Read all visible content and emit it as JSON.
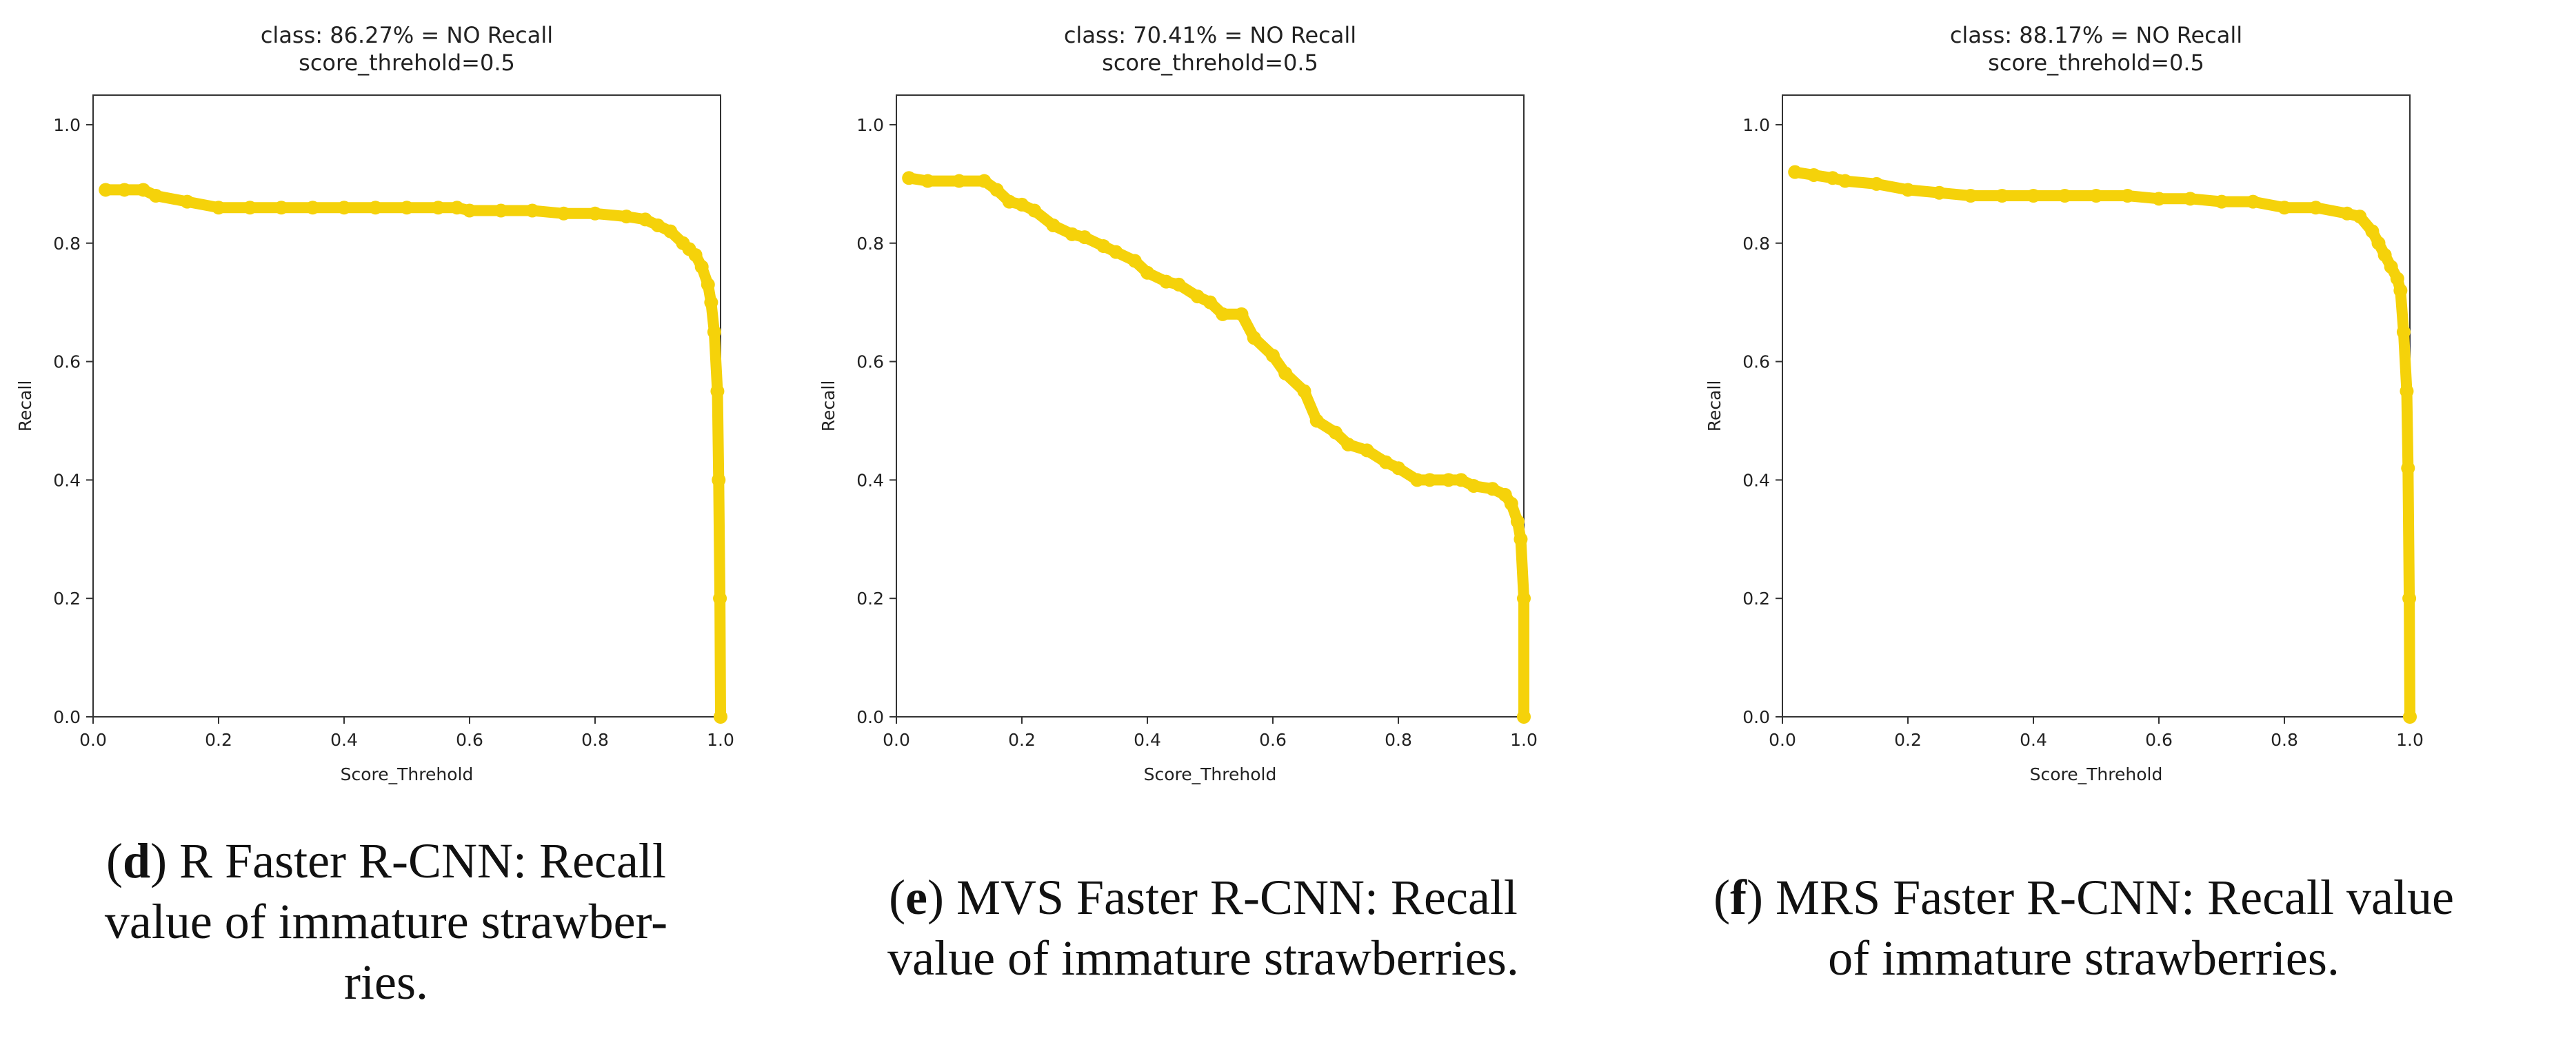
{
  "series_color": "#f5d20a",
  "chart_data": [
    {
      "type": "line",
      "title": "class: 86.27% = NO Recall",
      "subtitle": "score_threhold=0.5",
      "xlabel": "Score_Threhold",
      "ylabel": "Recall",
      "xlim": [
        0.0,
        1.0
      ],
      "ylim": [
        0.0,
        1.05
      ],
      "xticks": [
        "0.0",
        "0.2",
        "0.4",
        "0.6",
        "0.8",
        "1.0"
      ],
      "yticks": [
        "0.0",
        "0.2",
        "0.4",
        "0.6",
        "0.8",
        "1.0"
      ],
      "series": [
        {
          "name": "Recall",
          "x": [
            0.02,
            0.05,
            0.08,
            0.1,
            0.15,
            0.2,
            0.25,
            0.3,
            0.35,
            0.4,
            0.45,
            0.5,
            0.55,
            0.58,
            0.6,
            0.65,
            0.7,
            0.75,
            0.8,
            0.85,
            0.88,
            0.9,
            0.92,
            0.94,
            0.95,
            0.96,
            0.97,
            0.98,
            0.985,
            0.99,
            0.995,
            0.997,
            0.999,
            1.0
          ],
          "y": [
            0.89,
            0.89,
            0.89,
            0.88,
            0.87,
            0.86,
            0.86,
            0.86,
            0.86,
            0.86,
            0.86,
            0.86,
            0.86,
            0.86,
            0.855,
            0.855,
            0.855,
            0.85,
            0.85,
            0.845,
            0.84,
            0.83,
            0.82,
            0.8,
            0.79,
            0.78,
            0.76,
            0.73,
            0.7,
            0.65,
            0.55,
            0.4,
            0.2,
            0.0
          ]
        }
      ]
    },
    {
      "type": "line",
      "title": "class: 70.41% = NO Recall",
      "subtitle": "score_threhold=0.5",
      "xlabel": "Score_Threhold",
      "ylabel": "Recall",
      "xlim": [
        0.0,
        1.0
      ],
      "ylim": [
        0.0,
        1.05
      ],
      "xticks": [
        "0.0",
        "0.2",
        "0.4",
        "0.6",
        "0.8",
        "1.0"
      ],
      "yticks": [
        "0.0",
        "0.2",
        "0.4",
        "0.6",
        "0.8",
        "1.0"
      ],
      "series": [
        {
          "name": "Recall",
          "x": [
            0.02,
            0.05,
            0.1,
            0.14,
            0.16,
            0.18,
            0.2,
            0.22,
            0.25,
            0.28,
            0.3,
            0.33,
            0.35,
            0.38,
            0.4,
            0.43,
            0.45,
            0.48,
            0.5,
            0.52,
            0.55,
            0.57,
            0.6,
            0.62,
            0.65,
            0.67,
            0.7,
            0.72,
            0.75,
            0.78,
            0.8,
            0.83,
            0.85,
            0.88,
            0.9,
            0.92,
            0.95,
            0.97,
            0.98,
            0.99,
            0.995,
            1.0,
            1.0
          ],
          "y": [
            0.91,
            0.905,
            0.905,
            0.905,
            0.89,
            0.87,
            0.865,
            0.855,
            0.83,
            0.815,
            0.81,
            0.795,
            0.785,
            0.77,
            0.75,
            0.735,
            0.73,
            0.71,
            0.7,
            0.68,
            0.68,
            0.64,
            0.61,
            0.58,
            0.55,
            0.5,
            0.48,
            0.46,
            0.45,
            0.43,
            0.42,
            0.4,
            0.4,
            0.4,
            0.4,
            0.39,
            0.385,
            0.375,
            0.36,
            0.33,
            0.3,
            0.2,
            0.0
          ]
        }
      ]
    },
    {
      "type": "line",
      "title": "class: 88.17% = NO Recall",
      "subtitle": "score_threhold=0.5",
      "xlabel": "Score_Threhold",
      "ylabel": "Recall",
      "xlim": [
        0.0,
        1.0
      ],
      "ylim": [
        0.0,
        1.05
      ],
      "xticks": [
        "0.0",
        "0.2",
        "0.4",
        "0.6",
        "0.8",
        "1.0"
      ],
      "yticks": [
        "0.0",
        "0.2",
        "0.4",
        "0.6",
        "0.8",
        "1.0"
      ],
      "series": [
        {
          "name": "Recall",
          "x": [
            0.02,
            0.05,
            0.08,
            0.1,
            0.15,
            0.2,
            0.25,
            0.3,
            0.35,
            0.4,
            0.45,
            0.5,
            0.55,
            0.6,
            0.65,
            0.7,
            0.75,
            0.8,
            0.85,
            0.9,
            0.92,
            0.94,
            0.95,
            0.96,
            0.97,
            0.98,
            0.985,
            0.99,
            0.995,
            0.997,
            0.999,
            1.0
          ],
          "y": [
            0.92,
            0.915,
            0.91,
            0.905,
            0.9,
            0.89,
            0.885,
            0.88,
            0.88,
            0.88,
            0.88,
            0.88,
            0.88,
            0.875,
            0.875,
            0.87,
            0.87,
            0.86,
            0.86,
            0.85,
            0.845,
            0.82,
            0.8,
            0.78,
            0.76,
            0.74,
            0.72,
            0.65,
            0.55,
            0.42,
            0.2,
            0.0
          ]
        }
      ]
    }
  ],
  "captions": [
    {
      "letter": "d",
      "lines": [
        ") R Faster R-CNN: Recall",
        "value of immature strawber-",
        "ries."
      ]
    },
    {
      "letter": "e",
      "lines": [
        ") MVS Faster R-CNN: Recall",
        "value of immature strawberries."
      ]
    },
    {
      "letter": "f",
      "lines": [
        ") MRS Faster R-CNN: Recall value",
        "of immature strawberries."
      ]
    }
  ]
}
